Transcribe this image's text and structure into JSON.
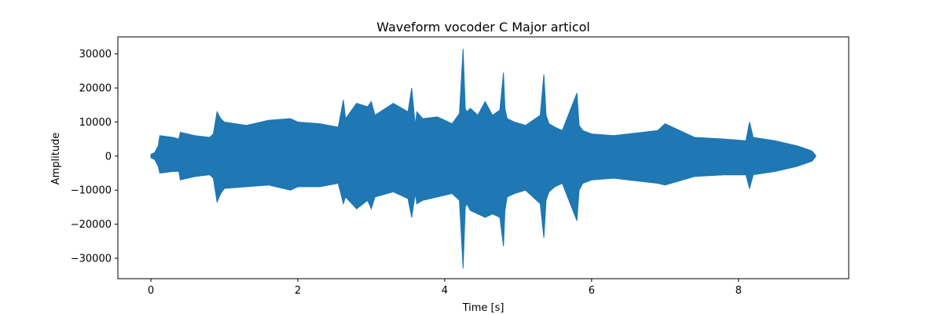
{
  "chart_data": {
    "type": "area",
    "title": "Waveform vocoder C Major articol",
    "xlabel": "Time [s]",
    "ylabel": "Amplitude",
    "xlim": [
      -0.45,
      9.5
    ],
    "ylim": [
      -36000,
      35000
    ],
    "xticks": [
      0,
      2,
      4,
      6,
      8
    ],
    "yticks": [
      -30000,
      -20000,
      -10000,
      0,
      10000,
      20000,
      30000
    ],
    "xtick_labels": [
      "0",
      "2",
      "4",
      "6",
      "8"
    ],
    "ytick_labels": [
      "−30000",
      "−20000",
      "−10000",
      "0",
      "10000",
      "20000",
      "30000"
    ],
    "grid": false,
    "series": [
      {
        "color": "#1f77b4",
        "envelope": {
          "t": [
            0,
            0.05,
            0.1,
            0.12,
            0.3,
            0.38,
            0.4,
            0.6,
            0.8,
            0.85,
            0.9,
            0.95,
            1.0,
            1.3,
            1.6,
            1.9,
            2.0,
            2.3,
            2.55,
            2.62,
            2.65,
            2.8,
            2.95,
            3.0,
            3.05,
            3.3,
            3.5,
            3.55,
            3.6,
            3.62,
            3.7,
            3.9,
            4.1,
            4.2,
            4.25,
            4.28,
            4.3,
            4.35,
            4.45,
            4.55,
            4.65,
            4.75,
            4.8,
            4.82,
            4.85,
            4.95,
            5.1,
            5.3,
            5.35,
            5.38,
            5.42,
            5.5,
            5.6,
            5.8,
            5.83,
            5.88,
            6.0,
            6.3,
            6.7,
            6.9,
            7.0,
            7.4,
            7.8,
            8.1,
            8.15,
            8.2,
            8.5,
            8.8,
            9.0,
            9.05
          ],
          "max": [
            500,
            1000,
            3000,
            6000,
            5500,
            5000,
            7000,
            6000,
            5500,
            6500,
            13000,
            11000,
            10000,
            9000,
            10500,
            11000,
            10000,
            9500,
            8500,
            16500,
            11000,
            15500,
            14500,
            16000,
            12000,
            15500,
            13000,
            20000,
            9000,
            13000,
            11000,
            11500,
            9500,
            12500,
            31500,
            14000,
            13000,
            14000,
            12000,
            16000,
            12000,
            13500,
            24500,
            14000,
            11000,
            10000,
            9000,
            12000,
            24000,
            12000,
            9500,
            8500,
            7500,
            18500,
            9000,
            7500,
            6500,
            6000,
            7000,
            7500,
            9500,
            5500,
            5000,
            4500,
            10000,
            5500,
            4500,
            3000,
            1500,
            200
          ],
          "min": [
            -500,
            -1000,
            -3000,
            -5000,
            -4500,
            -4500,
            -7000,
            -6000,
            -5500,
            -6500,
            -13500,
            -11000,
            -9500,
            -9000,
            -8500,
            -10000,
            -9000,
            -9000,
            -8000,
            -14000,
            -12000,
            -15500,
            -13000,
            -15500,
            -12000,
            -10500,
            -12500,
            -18000,
            -11000,
            -14000,
            -13000,
            -12000,
            -11000,
            -13000,
            -33000,
            -15000,
            -14000,
            -16000,
            -17000,
            -18000,
            -17000,
            -18000,
            -26500,
            -16000,
            -12000,
            -11000,
            -10000,
            -14000,
            -24000,
            -13000,
            -10500,
            -9000,
            -8000,
            -19000,
            -10000,
            -8000,
            -7000,
            -6500,
            -7500,
            -8000,
            -8500,
            -6000,
            -5500,
            -5500,
            -9500,
            -5500,
            -4500,
            -3000,
            -1500,
            -200
          ]
        }
      }
    ]
  }
}
